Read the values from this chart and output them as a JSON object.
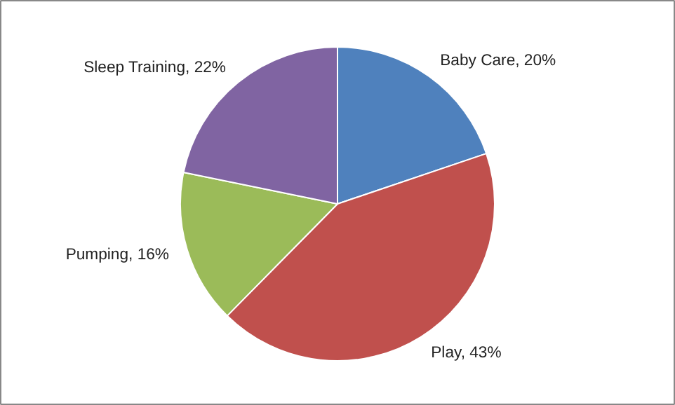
{
  "chart_data": {
    "type": "pie",
    "categories": [
      "Baby Care",
      "Play",
      "Pumping",
      "Sleep Training"
    ],
    "values": [
      20,
      43,
      16,
      22
    ],
    "colors": [
      "#4f81bd",
      "#c0504d",
      "#9bbb59",
      "#8064a2"
    ],
    "value_labels": [
      "20%",
      "43%",
      "16%",
      "22%"
    ]
  }
}
